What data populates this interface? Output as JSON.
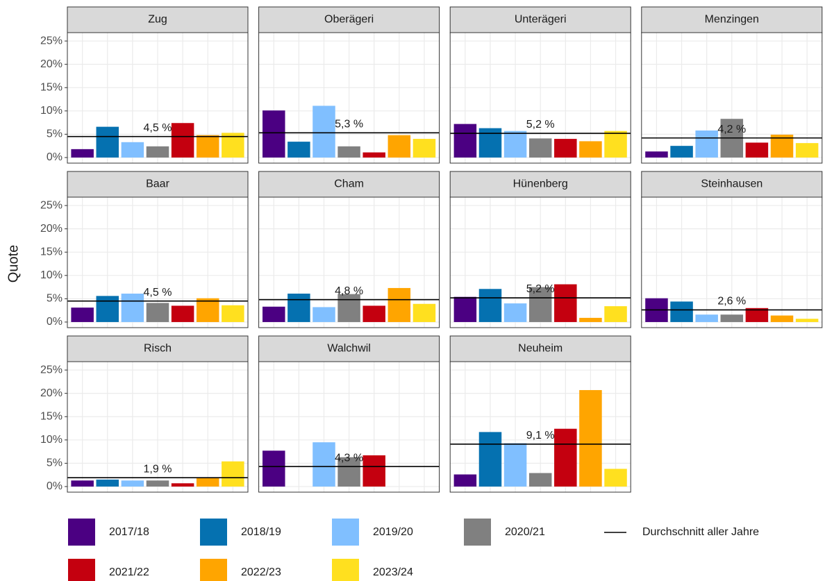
{
  "chart_data": {
    "type": "bar",
    "y_label": "Quote",
    "categories": [
      "2017/18",
      "2018/19",
      "2019/20",
      "2020/21",
      "2021/22",
      "2022/23",
      "2023/24"
    ],
    "colors": [
      "#4b0082",
      "#0571b0",
      "#80bfff",
      "#808080",
      "#c4000f",
      "#ffa500",
      "#ffe01f"
    ],
    "mean_legend": "Durchschnitt aller Jahre",
    "ylim": [
      -1.2,
      26.8
    ],
    "yticks": [
      {
        "value": 0,
        "label": "0%"
      },
      {
        "value": 5,
        "label": "5%"
      },
      {
        "value": 10,
        "label": "10%"
      },
      {
        "value": 15,
        "label": "15%"
      },
      {
        "value": 20,
        "label": "20%"
      },
      {
        "value": 25,
        "label": "25%"
      }
    ],
    "facets": [
      {
        "title": "Zug",
        "values": [
          1.8,
          6.6,
          3.3,
          2.4,
          7.4,
          4.8,
          5.3
        ],
        "mean": 4.5,
        "mean_label": "4,5 %"
      },
      {
        "title": "Oberägeri",
        "values": [
          10.1,
          3.4,
          11.1,
          2.4,
          1.1,
          4.8,
          4.0
        ],
        "mean": 5.3,
        "mean_label": "5,3 %"
      },
      {
        "title": "Unterägeri",
        "values": [
          7.2,
          6.3,
          5.7,
          4.1,
          4.0,
          3.5,
          5.7
        ],
        "mean": 5.2,
        "mean_label": "5,2 %"
      },
      {
        "title": "Menzingen",
        "values": [
          1.3,
          2.5,
          5.8,
          8.3,
          3.2,
          4.9,
          3.1
        ],
        "mean": 4.2,
        "mean_label": "4,2 %"
      },
      {
        "title": "Baar",
        "values": [
          3.1,
          5.6,
          6.1,
          4.1,
          3.5,
          5.1,
          3.6
        ],
        "mean": 4.5,
        "mean_label": "4,5 %"
      },
      {
        "title": "Cham",
        "values": [
          3.3,
          6.1,
          3.2,
          6.0,
          3.5,
          7.3,
          3.9
        ],
        "mean": 4.8,
        "mean_label": "4,8 %"
      },
      {
        "title": "Hünenberg",
        "values": [
          5.4,
          7.1,
          4.0,
          7.5,
          8.1,
          0.9,
          3.4
        ],
        "mean": 5.2,
        "mean_label": "5,2 %"
      },
      {
        "title": "Steinhausen",
        "values": [
          5.1,
          4.4,
          1.6,
          1.6,
          3.0,
          1.4,
          0.7
        ],
        "mean": 2.6,
        "mean_label": "2,6 %"
      },
      {
        "title": "Risch",
        "values": [
          1.3,
          1.5,
          1.3,
          1.3,
          0.7,
          1.9,
          5.4
        ],
        "mean": 1.9,
        "mean_label": "1,9 %"
      },
      {
        "title": "Walchwil",
        "values": [
          7.7,
          null,
          9.5,
          6.3,
          6.7,
          null,
          null
        ],
        "mean": 4.3,
        "mean_label": "4,3 %"
      },
      {
        "title": "Neuheim",
        "values": [
          2.6,
          11.7,
          9.3,
          2.9,
          12.4,
          20.7,
          3.8
        ],
        "mean": 9.1,
        "mean_label": "9,1 %"
      }
    ]
  }
}
